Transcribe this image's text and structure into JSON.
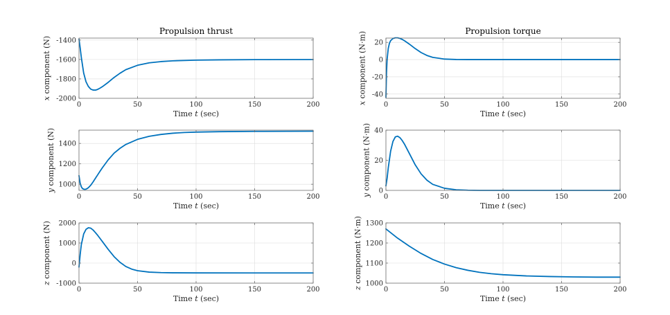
{
  "chart_data": [
    {
      "type": "line",
      "title": "Propulsion thrust",
      "xlabel": "Time t (sec)",
      "ylabel": "x component (N)",
      "xlim": [
        0,
        200
      ],
      "ylim": [
        -2000,
        -1380
      ],
      "xticks": [
        0,
        50,
        100,
        150,
        200
      ],
      "yticks": [
        -2000,
        -1800,
        -1600,
        -1400
      ],
      "grid": true,
      "series": [
        {
          "x": [
            0,
            1,
            2,
            4,
            6,
            8,
            10,
            12,
            14,
            16,
            18,
            20,
            25,
            30,
            35,
            40,
            50,
            60,
            70,
            80,
            100,
            120,
            150,
            200
          ],
          "values": [
            -1390,
            -1480,
            -1580,
            -1740,
            -1830,
            -1878,
            -1905,
            -1915,
            -1916,
            -1908,
            -1895,
            -1880,
            -1835,
            -1785,
            -1742,
            -1705,
            -1660,
            -1635,
            -1622,
            -1614,
            -1607,
            -1604,
            -1602,
            -1601
          ]
        }
      ]
    },
    {
      "type": "line",
      "title": "",
      "xlabel": "Time t (sec)",
      "ylabel": "y component (N)",
      "xlim": [
        0,
        200
      ],
      "ylim": [
        940,
        1530
      ],
      "xticks": [
        0,
        50,
        100,
        150,
        200
      ],
      "yticks": [
        1000,
        1200,
        1400
      ],
      "grid": true,
      "series": [
        {
          "x": [
            0,
            1,
            2,
            3,
            4,
            5,
            6,
            7,
            8,
            10,
            12,
            14,
            16,
            18,
            20,
            25,
            30,
            35,
            40,
            50,
            60,
            70,
            80,
            90,
            100,
            120,
            150,
            200
          ],
          "values": [
            1085,
            1010,
            975,
            958,
            952,
            950,
            952,
            958,
            966,
            990,
            1022,
            1058,
            1093,
            1128,
            1162,
            1240,
            1305,
            1352,
            1390,
            1440,
            1470,
            1488,
            1500,
            1507,
            1511,
            1515,
            1518,
            1520
          ]
        }
      ]
    },
    {
      "type": "line",
      "title": "",
      "xlabel": "Time t (sec)",
      "ylabel": "z component (N)",
      "xlim": [
        0,
        200
      ],
      "ylim": [
        -1000,
        2000
      ],
      "xticks": [
        0,
        50,
        100,
        150,
        200
      ],
      "yticks": [
        -1000,
        0,
        1000,
        2000
      ],
      "grid": true,
      "series": [
        {
          "x": [
            0,
            1,
            2,
            4,
            6,
            8,
            10,
            12,
            14,
            16,
            20,
            25,
            30,
            35,
            40,
            45,
            50,
            60,
            70,
            80,
            100,
            150,
            200
          ],
          "values": [
            -200,
            420,
            920,
            1450,
            1680,
            1760,
            1740,
            1650,
            1520,
            1380,
            1070,
            680,
            320,
            40,
            -170,
            -300,
            -380,
            -450,
            -475,
            -485,
            -490,
            -492,
            -492
          ]
        }
      ]
    },
    {
      "type": "line",
      "title": "Propulsion torque",
      "xlabel": "Time t (sec)",
      "ylabel": "x component (N·m)",
      "xlim": [
        0,
        200
      ],
      "ylim": [
        -45,
        25
      ],
      "xticks": [
        0,
        50,
        100,
        150,
        200
      ],
      "yticks": [
        -40,
        -20,
        0,
        20
      ],
      "grid": true,
      "series": [
        {
          "x": [
            0,
            0.5,
            1,
            2,
            3,
            4,
            6,
            8,
            10,
            12,
            14,
            16,
            20,
            25,
            30,
            35,
            40,
            50,
            60,
            70,
            80,
            100,
            150,
            200
          ],
          "values": [
            -44,
            -15,
            0,
            13,
            19,
            22,
            24.5,
            25.3,
            25.3,
            24.6,
            23.4,
            21.8,
            18,
            12.8,
            8.2,
            4.8,
            2.6,
            0.6,
            0.1,
            0,
            0,
            0,
            0,
            0
          ]
        }
      ]
    },
    {
      "type": "line",
      "title": "",
      "xlabel": "Time t (sec)",
      "ylabel": "y component (N·m)",
      "xlim": [
        0,
        200
      ],
      "ylim": [
        0,
        40
      ],
      "xticks": [
        0,
        50,
        100,
        150,
        200
      ],
      "yticks": [
        0,
        20,
        40
      ],
      "grid": true,
      "series": [
        {
          "x": [
            0,
            1,
            2,
            4,
            6,
            8,
            10,
            12,
            14,
            16,
            20,
            25,
            30,
            35,
            40,
            50,
            60,
            70,
            80,
            100,
            150,
            200
          ],
          "values": [
            3,
            8,
            15,
            26,
            32.5,
            35.5,
            36,
            35,
            33,
            30.5,
            24.5,
            17,
            11,
            6.8,
            4,
            1.4,
            0.4,
            0.1,
            0,
            0,
            0,
            0
          ]
        }
      ]
    },
    {
      "type": "line",
      "title": "",
      "xlabel": "Time t (sec)",
      "ylabel": "z component (N·m)",
      "xlim": [
        0,
        200
      ],
      "ylim": [
        1000,
        1300
      ],
      "xticks": [
        0,
        50,
        100,
        150,
        200
      ],
      "yticks": [
        1000,
        1100,
        1200,
        1300
      ],
      "grid": true,
      "series": [
        {
          "x": [
            0,
            10,
            20,
            30,
            40,
            50,
            60,
            70,
            80,
            90,
            100,
            120,
            140,
            160,
            180,
            200
          ],
          "values": [
            1270,
            1224,
            1184,
            1148,
            1118,
            1095,
            1077,
            1064,
            1054,
            1047,
            1042,
            1036,
            1033,
            1031,
            1030,
            1030
          ]
        }
      ]
    }
  ]
}
